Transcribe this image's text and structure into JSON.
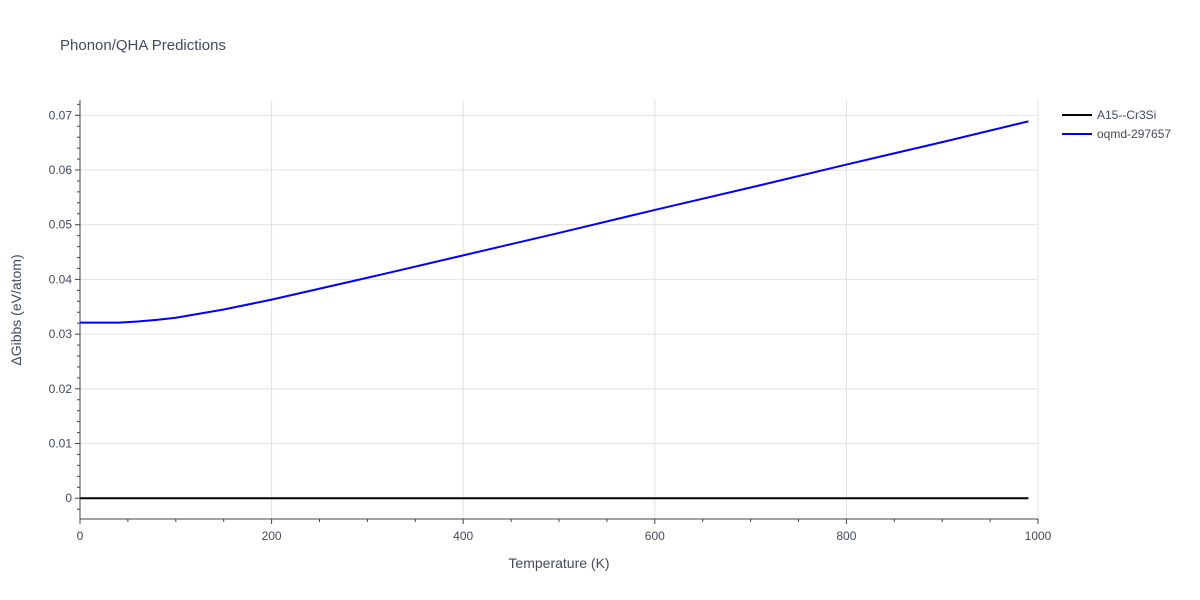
{
  "chart_data": {
    "type": "line",
    "title": "Phonon/QHA Predictions",
    "xlabel": "Temperature (K)",
    "ylabel": "ΔGibbs (eV/atom)",
    "xlim": [
      0,
      1000
    ],
    "ylim": [
      -0.0038,
      0.0728
    ],
    "x_ticks": [
      0,
      200,
      400,
      600,
      800,
      1000
    ],
    "x_tick_labels": [
      "0",
      "200",
      "400",
      "600",
      "800",
      "1000"
    ],
    "y_ticks": [
      0,
      0.01,
      0.02,
      0.03,
      0.04,
      0.05,
      0.06,
      0.07
    ],
    "y_tick_labels": [
      "0",
      "0.01",
      "0.02",
      "0.03",
      "0.04",
      "0.05",
      "0.06",
      "0.07"
    ],
    "grid": true,
    "legend_position": "top-right",
    "series": [
      {
        "name": "A15--Cr3Si",
        "color": "#000000",
        "x": [
          0,
          990
        ],
        "y": [
          0,
          0
        ]
      },
      {
        "name": "oqmd-297657",
        "color": "#0000ff",
        "x": [
          0,
          20,
          40,
          50,
          60,
          80,
          100,
          150,
          200,
          300,
          400,
          500,
          600,
          700,
          800,
          900,
          990
        ],
        "y": [
          0.0321,
          0.0321,
          0.0321,
          0.0322,
          0.0323,
          0.0326,
          0.033,
          0.0345,
          0.0363,
          0.0403,
          0.0444,
          0.0485,
          0.0527,
          0.0568,
          0.061,
          0.0651,
          0.0689
        ]
      }
    ]
  }
}
